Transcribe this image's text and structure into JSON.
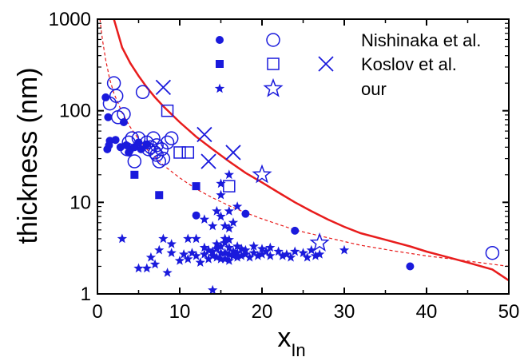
{
  "chart_data": {
    "type": "scatter",
    "title": "",
    "xlabel": "x",
    "xlabel_sub": "In",
    "ylabel": "thickness  (nm)",
    "xlim": [
      0,
      50
    ],
    "ylim": [
      1,
      1000
    ],
    "yscale": "log",
    "x_ticks": [
      "0",
      "10",
      "20",
      "30",
      "40",
      "50"
    ],
    "y_ticks": [
      "1",
      "10",
      "100",
      "1000"
    ],
    "legend": [
      "Nishinaka et al.",
      "Koslov et al.",
      "our"
    ],
    "color": "#1a1adc",
    "curve_color": "#e81c1c",
    "series": [
      {
        "name": "Nishinaka et al.",
        "marker": "filled-circle",
        "points": [
          [
            1,
            140
          ],
          [
            1.3,
            85
          ],
          [
            1.5,
            47
          ],
          [
            1.2,
            38
          ],
          [
            1.4,
            42
          ],
          [
            2.2,
            48
          ],
          [
            2.8,
            40
          ],
          [
            3.2,
            75
          ],
          [
            3.5,
            42
          ],
          [
            4,
            38
          ],
          [
            4.5,
            40
          ],
          [
            5,
            45
          ],
          [
            5.3,
            38
          ],
          [
            6,
            43
          ],
          [
            12,
            7.2
          ],
          [
            18,
            7.5
          ],
          [
            24,
            4.9
          ],
          [
            38,
            2.0
          ],
          [
            3.8,
            35
          ]
        ]
      },
      {
        "name": "Nishinaka et al.",
        "marker": "open-circle",
        "points": [
          [
            1.5,
            120
          ],
          [
            2,
            200
          ],
          [
            2.3,
            145
          ],
          [
            2.5,
            85
          ],
          [
            3.2,
            92
          ],
          [
            3.8,
            45
          ],
          [
            4.2,
            50
          ],
          [
            4.5,
            28
          ],
          [
            5,
            50
          ],
          [
            5.5,
            160
          ],
          [
            6,
            45
          ],
          [
            6.5,
            40
          ],
          [
            6.8,
            50
          ],
          [
            7,
            35
          ],
          [
            7.2,
            42
          ],
          [
            7.5,
            28
          ],
          [
            7.8,
            38
          ],
          [
            8,
            30
          ],
          [
            8.5,
            45
          ],
          [
            9,
            50
          ],
          [
            7.2,
            33
          ],
          [
            6.2,
            38
          ],
          [
            3.6,
            38
          ],
          [
            48,
            2.8
          ]
        ]
      },
      {
        "name": "Koslov et al.",
        "marker": "filled-square",
        "points": [
          [
            4.5,
            20
          ],
          [
            7.5,
            12
          ],
          [
            12,
            15
          ]
        ]
      },
      {
        "name": "Koslov et al.",
        "marker": "open-square",
        "points": [
          [
            8.5,
            100
          ],
          [
            10,
            35
          ],
          [
            11,
            35
          ],
          [
            16,
            15
          ]
        ]
      },
      {
        "name": "Koslov et al.",
        "marker": "cross",
        "points": [
          [
            8,
            180
          ],
          [
            13,
            55
          ],
          [
            13.5,
            28
          ],
          [
            16.5,
            35
          ]
        ]
      },
      {
        "name": "our",
        "marker": "filled-star",
        "points": [
          [
            3,
            4
          ],
          [
            5,
            1.9
          ],
          [
            6,
            1.9
          ],
          [
            6.5,
            2.5
          ],
          [
            7,
            2.1
          ],
          [
            7.5,
            3
          ],
          [
            8,
            4
          ],
          [
            8.5,
            1.7
          ],
          [
            9,
            2.8
          ],
          [
            10,
            2.3
          ],
          [
            10.5,
            2.7
          ],
          [
            11,
            2.4
          ],
          [
            11.5,
            2.8
          ],
          [
            12,
            2.6
          ],
          [
            12.5,
            2.2
          ],
          [
            13,
            3.2
          ],
          [
            13,
            2.7
          ],
          [
            13.5,
            3.0
          ],
          [
            13.5,
            2.4
          ],
          [
            14,
            2.9
          ],
          [
            14,
            2.6
          ],
          [
            14,
            1.1
          ],
          [
            14.5,
            3.5
          ],
          [
            14.5,
            3.1
          ],
          [
            14.5,
            2.5
          ],
          [
            15,
            3.3
          ],
          [
            15,
            2.8
          ],
          [
            15,
            2.4
          ],
          [
            15,
            16
          ],
          [
            15,
            12
          ],
          [
            15.5,
            4
          ],
          [
            15.5,
            3.6
          ],
          [
            15.5,
            2.8
          ],
          [
            15.5,
            2.4
          ],
          [
            16,
            3.9
          ],
          [
            16,
            3.2
          ],
          [
            16,
            2.7
          ],
          [
            16,
            2.3
          ],
          [
            16.5,
            2.9
          ],
          [
            16.5,
            2.6
          ],
          [
            17,
            3.3
          ],
          [
            17,
            2.8
          ],
          [
            17,
            2.5
          ],
          [
            17.5,
            3.1
          ],
          [
            17.5,
            2.6
          ],
          [
            18,
            3.0
          ],
          [
            18,
            2.7
          ],
          [
            18.5,
            2.5
          ],
          [
            19,
            3.3
          ],
          [
            19,
            2.8
          ],
          [
            19.5,
            2.6
          ],
          [
            20,
            3.1
          ],
          [
            20,
            2.7
          ],
          [
            20.5,
            2.9
          ],
          [
            21,
            3.2
          ],
          [
            21,
            2.6
          ],
          [
            22,
            2.9
          ],
          [
            22.5,
            2.6
          ],
          [
            23,
            2.7
          ],
          [
            23.5,
            2.5
          ],
          [
            24,
            2.9
          ],
          [
            25,
            2.8
          ],
          [
            25.5,
            2.5
          ],
          [
            26,
            3.0
          ],
          [
            26.5,
            2.6
          ],
          [
            27,
            2.7
          ],
          [
            30,
            3.0
          ],
          [
            13,
            6.5
          ],
          [
            14,
            5.5
          ],
          [
            14.5,
            8
          ],
          [
            15,
            7
          ],
          [
            15.5,
            5.5
          ],
          [
            16,
            8
          ],
          [
            16,
            5.2
          ],
          [
            16.5,
            6
          ],
          [
            16,
            20
          ],
          [
            17,
            9
          ],
          [
            12,
            4
          ],
          [
            11,
            4
          ],
          [
            9,
            3.5
          ]
        ]
      },
      {
        "name": "our",
        "marker": "open-star",
        "points": [
          [
            20,
            20
          ],
          [
            27,
            3.6
          ]
        ]
      },
      {
        "name": "",
        "marker": "solid-curve",
        "points": [
          [
            2,
            1000
          ],
          [
            3,
            490
          ],
          [
            4,
            330
          ],
          [
            5,
            240
          ],
          [
            6,
            180
          ],
          [
            7,
            140
          ],
          [
            8,
            112
          ],
          [
            10,
            75
          ],
          [
            12,
            52
          ],
          [
            14,
            38
          ],
          [
            16,
            28
          ],
          [
            18,
            21
          ],
          [
            20,
            16.5
          ],
          [
            22,
            12.8
          ],
          [
            24,
            10
          ],
          [
            26,
            8
          ],
          [
            28,
            6.5
          ],
          [
            30,
            5.4
          ],
          [
            32,
            4.6
          ],
          [
            35,
            3.9
          ],
          [
            38,
            3.3
          ],
          [
            40,
            2.9
          ],
          [
            42,
            2.6
          ],
          [
            45,
            2.2
          ],
          [
            48,
            1.85
          ],
          [
            50,
            1.4
          ]
        ]
      },
      {
        "name": "",
        "marker": "dashed-curve",
        "points": [
          [
            0.3,
            1000
          ],
          [
            0.6,
            600
          ],
          [
            1,
            360
          ],
          [
            1.5,
            220
          ],
          [
            2,
            155
          ],
          [
            3,
            95
          ],
          [
            4,
            66
          ],
          [
            5,
            49
          ],
          [
            6,
            38
          ],
          [
            8,
            25.5
          ],
          [
            10,
            18.5
          ],
          [
            12,
            14
          ],
          [
            14,
            11.2
          ],
          [
            16,
            9.2
          ],
          [
            18,
            7.7
          ],
          [
            20,
            6.6
          ],
          [
            24,
            5
          ],
          [
            28,
            4.1
          ],
          [
            32,
            3.4
          ],
          [
            36,
            2.95
          ],
          [
            40,
            2.6
          ],
          [
            44,
            2.35
          ],
          [
            50,
            2.0
          ]
        ]
      }
    ]
  }
}
